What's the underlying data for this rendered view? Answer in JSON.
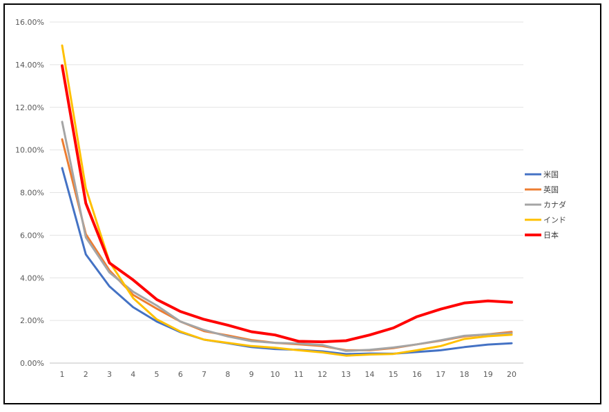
{
  "chart_data": {
    "type": "line",
    "categories": [
      "1",
      "2",
      "3",
      "4",
      "5",
      "6",
      "7",
      "8",
      "9",
      "10",
      "11",
      "12",
      "13",
      "14",
      "15",
      "16",
      "17",
      "18",
      "19",
      "20"
    ],
    "y_ticks": [
      "0.00%",
      "2.00%",
      "4.00%",
      "6.00%",
      "8.00%",
      "10.00%",
      "12.00%",
      "14.00%",
      "16.00%"
    ],
    "ylim": [
      0,
      0.16
    ],
    "grid": true,
    "legend_position": "right",
    "series": [
      {
        "name": "米国",
        "color": "#4472C4",
        "width": 3,
        "values": [
          0.0915,
          0.051,
          0.036,
          0.0262,
          0.0195,
          0.0145,
          0.011,
          0.0093,
          0.0075,
          0.0066,
          0.0062,
          0.0055,
          0.0042,
          0.0045,
          0.0044,
          0.0052,
          0.006,
          0.0075,
          0.0087,
          0.0093
        ]
      },
      {
        "name": "英国",
        "color": "#ED7D31",
        "width": 3,
        "values": [
          0.105,
          0.0605,
          0.0435,
          0.032,
          0.0255,
          0.0195,
          0.015,
          0.013,
          0.0108,
          0.0095,
          0.0088,
          0.008,
          0.006,
          0.006,
          0.007,
          0.0088,
          0.0105,
          0.0125,
          0.0135,
          0.0146
        ]
      },
      {
        "name": "カナダ",
        "color": "#A5A5A5",
        "width": 3,
        "values": [
          0.1132,
          0.059,
          0.0425,
          0.0335,
          0.027,
          0.0195,
          0.0155,
          0.0125,
          0.0103,
          0.0095,
          0.0092,
          0.0085,
          0.0057,
          0.0062,
          0.0073,
          0.0088,
          0.0107,
          0.0128,
          0.0135,
          0.014
        ]
      },
      {
        "name": "インド",
        "color": "#FFC000",
        "width": 3,
        "values": [
          0.149,
          0.082,
          0.0475,
          0.0305,
          0.0205,
          0.0148,
          0.011,
          0.0095,
          0.008,
          0.0072,
          0.006,
          0.005,
          0.0035,
          0.004,
          0.0043,
          0.006,
          0.008,
          0.0113,
          0.0126,
          0.0133
        ]
      },
      {
        "name": "日本",
        "color": "#FF0000",
        "width": 4,
        "values": [
          0.1395,
          0.075,
          0.047,
          0.039,
          0.0298,
          0.0242,
          0.0205,
          0.0178,
          0.0147,
          0.0132,
          0.0102,
          0.01,
          0.0105,
          0.0132,
          0.0165,
          0.0218,
          0.0253,
          0.0282,
          0.0292,
          0.0285
        ]
      }
    ]
  }
}
